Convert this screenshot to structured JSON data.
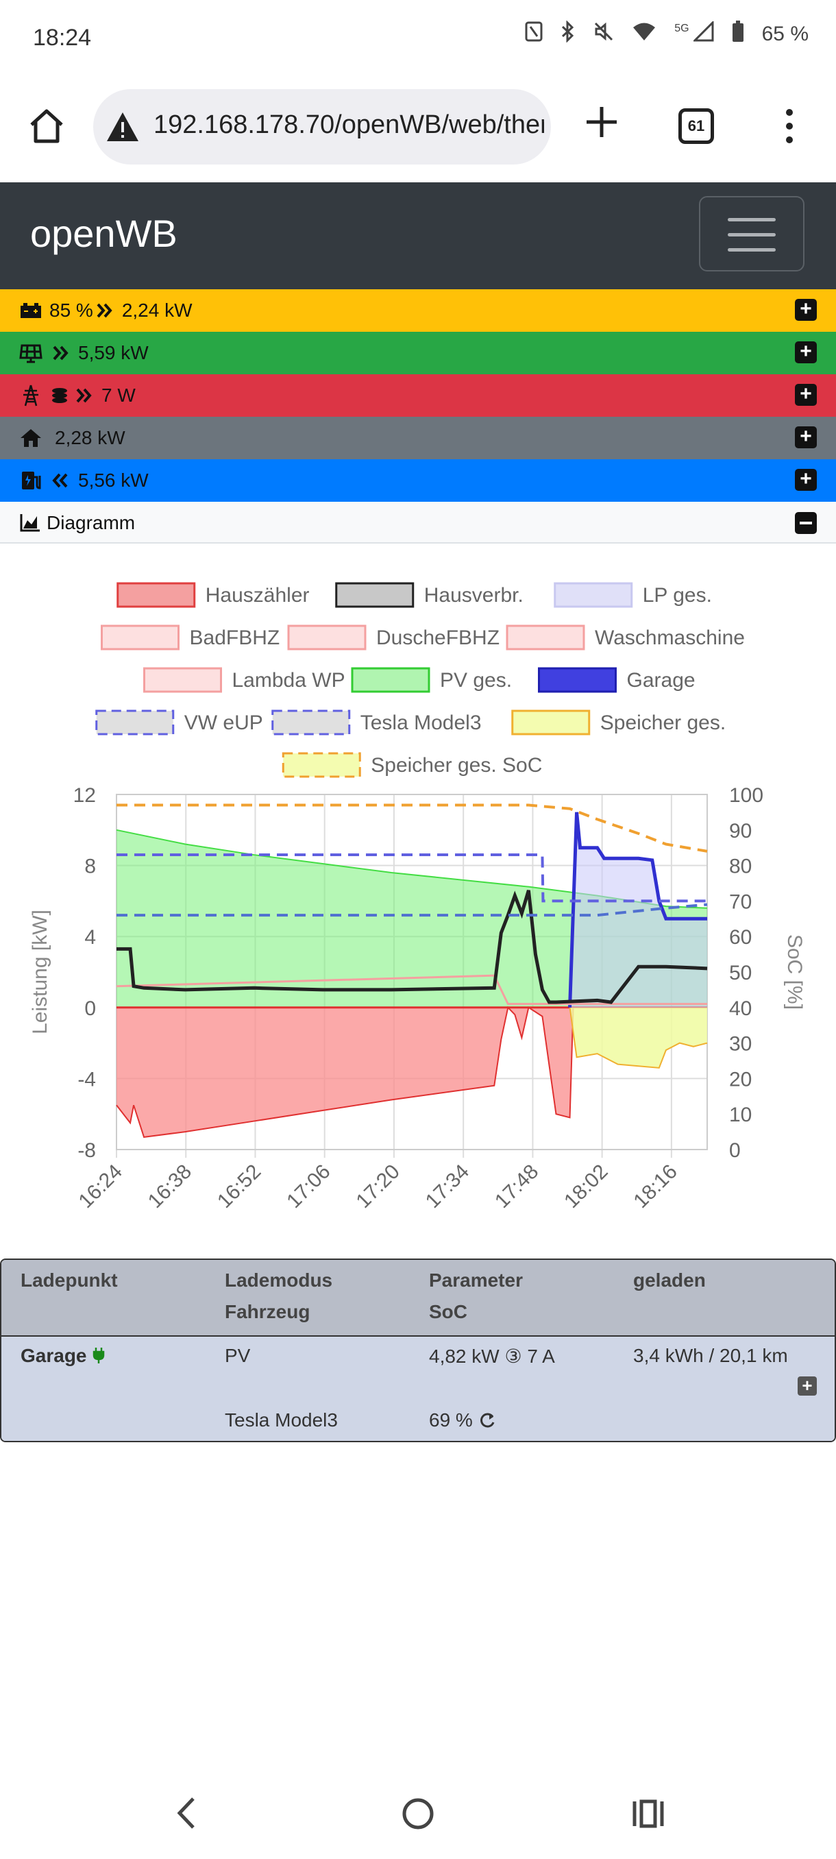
{
  "status_bar": {
    "time": "18:24",
    "battery": "65 %",
    "network": "5G"
  },
  "browser": {
    "url": "192.168.178.70/openWB/web/ther",
    "tab_count": "61"
  },
  "app": {
    "brand": "openWB"
  },
  "summary_bars": [
    {
      "label": "85 % ",
      "value": "2,24 kW",
      "color": "#ffc107",
      "icon": "battery-icon"
    },
    {
      "label": "",
      "value": "5,59 kW",
      "color": "#28a745",
      "icon": "solar-panel-icon"
    },
    {
      "label": "",
      "value": "7 W",
      "color": "#dc3545",
      "icon": "grid-tower-icon"
    },
    {
      "label": "",
      "value": "2,28 kW",
      "color": "#6c757d",
      "icon": "home-icon"
    },
    {
      "label": "",
      "value": "5,56 kW",
      "color": "#007bff",
      "icon": "charging-station-icon"
    }
  ],
  "diagram": {
    "label": "Diagramm"
  },
  "chart_data": {
    "type": "area",
    "xlabel": "",
    "ylabel": "Leistung [kW]",
    "y2label": "SoC [%]",
    "ylim": [
      -8,
      12
    ],
    "y2lim": [
      0,
      100
    ],
    "yticks": [
      "12",
      "8",
      "4",
      "0",
      "-4",
      "-8"
    ],
    "y2ticks": [
      "100",
      "90",
      "80",
      "70",
      "60",
      "50",
      "40",
      "30",
      "20",
      "10",
      "0"
    ],
    "xticks": [
      "16:24",
      "16:38",
      "16:52",
      "17:06",
      "17:20",
      "17:34",
      "17:48",
      "18:02",
      "18:16"
    ],
    "legend_placement": "top",
    "legend": [
      {
        "name": "Hauszähler",
        "color": "#f4a0a0",
        "stroke": "#e04040",
        "dashed": false
      },
      {
        "name": "Hausverbr.",
        "color": "#c8c8c8",
        "stroke": "#222222",
        "dashed": false
      },
      {
        "name": "LP ges.",
        "color": "#e0e0f8",
        "stroke": "#c8c8f0",
        "dashed": false
      },
      {
        "name": "BadFBHZ",
        "color": "#fde0e0",
        "stroke": "#f4a0a0",
        "dashed": false
      },
      {
        "name": "DuscheFBHZ",
        "color": "#fde0e0",
        "stroke": "#f4a0a0",
        "dashed": false
      },
      {
        "name": "Waschmaschine",
        "color": "#fde0e0",
        "stroke": "#f4a0a0",
        "dashed": false
      },
      {
        "name": "Lambda WP",
        "color": "#fde0e0",
        "stroke": "#f4a0a0",
        "dashed": false
      },
      {
        "name": "PV ges.",
        "color": "#b0f4b0",
        "stroke": "#33cc33",
        "dashed": false
      },
      {
        "name": "Garage",
        "color": "#4040e0",
        "stroke": "#2020b0",
        "dashed": false
      },
      {
        "name": "VW eUP",
        "color": "#e0e0e0",
        "stroke": "#6060e0",
        "dashed": true
      },
      {
        "name": "Tesla Model3",
        "color": "#e0e0e0",
        "stroke": "#6060e0",
        "dashed": true
      },
      {
        "name": "Speicher ges.",
        "color": "#f4fcb0",
        "stroke": "#f0b030",
        "dashed": false
      },
      {
        "name": "Speicher ges. SoC",
        "color": "#f4fcb0",
        "stroke": "#f0a030",
        "dashed": true
      }
    ],
    "series": [
      {
        "name": "PV ges.",
        "x": [
          0,
          10,
          20,
          30,
          40,
          50,
          60,
          70,
          80,
          86
        ],
        "values": [
          10,
          9.2,
          8.6,
          8.1,
          7.6,
          7.2,
          6.8,
          6.3,
          5.7,
          5.6
        ]
      },
      {
        "name": "Hausverbr.",
        "x": [
          0,
          2,
          2.5,
          4,
          10,
          20,
          30,
          40,
          55,
          56,
          57,
          58,
          59,
          60,
          61,
          62,
          63,
          64,
          70,
          72,
          76,
          80,
          86
        ],
        "values": [
          3.3,
          3.3,
          1.2,
          1.1,
          1.0,
          1.1,
          1.0,
          1.0,
          1.1,
          4.2,
          5.2,
          6.3,
          5.3,
          6.6,
          3.0,
          1.0,
          0.3,
          0.3,
          0.4,
          0.3,
          2.3,
          2.3,
          2.2
        ]
      },
      {
        "name": "Hauszähler",
        "x": [
          0,
          2,
          2.5,
          4,
          10,
          20,
          30,
          40,
          55,
          56,
          57,
          58,
          59,
          60,
          62,
          64,
          66,
          66.5,
          70,
          86
        ],
        "values": [
          -5.5,
          -6.5,
          -5.5,
          -7.3,
          -7.0,
          -6.4,
          -5.8,
          -5.2,
          -4.4,
          -1.8,
          0,
          -0.4,
          -1.7,
          0,
          -0.5,
          -6.0,
          -6.2,
          0,
          0,
          0
        ]
      },
      {
        "name": "Garage",
        "x": [
          66,
          67,
          67.5,
          68,
          69,
          70,
          71,
          74,
          75,
          76,
          78,
          79,
          80,
          86
        ],
        "values": [
          0,
          11,
          9,
          9,
          9,
          9,
          8.4,
          8.4,
          8.4,
          8.4,
          8.3,
          6,
          5,
          5
        ]
      },
      {
        "name": "Speicher ges.",
        "x": [
          66,
          67,
          70,
          73,
          76,
          79,
          80,
          82,
          84,
          86
        ],
        "values": [
          0,
          -2.8,
          -2.6,
          -3.2,
          -3.3,
          -3.4,
          -2.4,
          -2.0,
          -2.2,
          -2.0
        ]
      },
      {
        "name": "Speicher ges. SoC",
        "x": [
          0,
          20,
          40,
          60,
          66,
          70,
          76,
          80,
          86
        ],
        "values": [
          97,
          97,
          97,
          97,
          96,
          93,
          89,
          86,
          84
        ]
      },
      {
        "name": "VW eUP",
        "x": [
          0,
          62,
          62.1,
          86
        ],
        "values": [
          83,
          83,
          70,
          70
        ]
      },
      {
        "name": "Tesla Model3",
        "x": [
          0,
          66,
          70,
          80,
          86
        ],
        "values": [
          66,
          66,
          66,
          68,
          69
        ]
      }
    ]
  },
  "table": {
    "headers": {
      "col1": "Ladepunkt",
      "col2_line1": "Lademodus",
      "col2_line2": "Fahrzeug",
      "col3_line1": "Parameter",
      "col3_line2": "SoC",
      "col4": "geladen"
    },
    "row": {
      "ladepunkt": "Garage",
      "lademodus": "PV",
      "parameter": "4,82 kW ③ 7 A",
      "geladen": "3,4 kWh / 20,1 km",
      "fahrzeug": "Tesla Model3",
      "soc": "69 %"
    }
  }
}
